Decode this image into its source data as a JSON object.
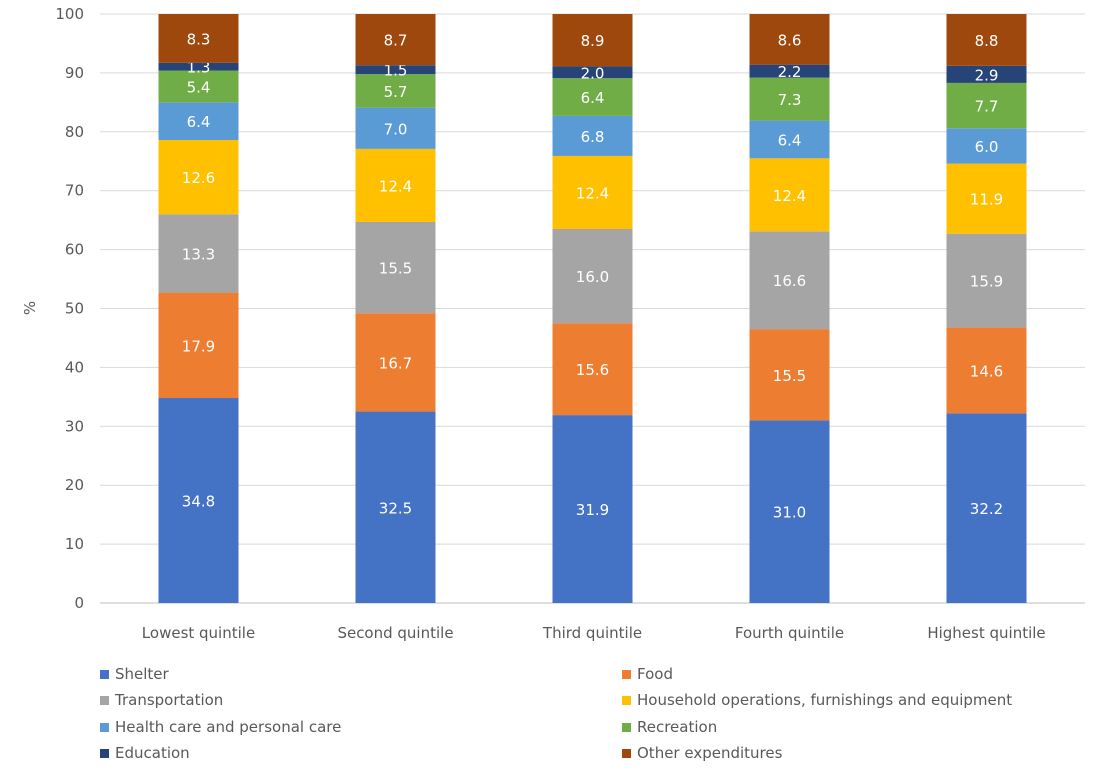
{
  "chart_data": {
    "type": "bar",
    "stacked": true,
    "title": "",
    "xlabel": "",
    "ylabel": "%",
    "ylim": [
      0,
      100
    ],
    "yticks": [
      0,
      10,
      20,
      30,
      40,
      50,
      60,
      70,
      80,
      90,
      100
    ],
    "grid": true,
    "legend_placement": "bottom",
    "categories": [
      "Lowest quintile",
      "Second quintile",
      "Third quintile",
      "Fourth quintile",
      "Highest quintile"
    ],
    "series": [
      {
        "name": "Shelter",
        "color": "#4472C4",
        "values": [
          34.8,
          32.5,
          31.9,
          31.0,
          32.2
        ]
      },
      {
        "name": "Food",
        "color": "#ED7D31",
        "values": [
          17.9,
          16.7,
          15.6,
          15.5,
          14.6
        ]
      },
      {
        "name": "Transportation",
        "color": "#A5A5A5",
        "values": [
          13.3,
          15.5,
          16.0,
          16.6,
          15.9
        ]
      },
      {
        "name": "Household operations, furnishings and equipment",
        "color": "#FFC000",
        "values": [
          12.6,
          12.4,
          12.4,
          12.4,
          11.9
        ]
      },
      {
        "name": "Health care and personal care",
        "color": "#5B9BD5",
        "values": [
          6.4,
          7.0,
          6.8,
          6.4,
          6.0
        ]
      },
      {
        "name": "Recreation",
        "color": "#70AD47",
        "values": [
          5.4,
          5.7,
          6.4,
          7.3,
          7.7
        ]
      },
      {
        "name": "Education",
        "color": "#264478",
        "values": [
          1.3,
          1.5,
          2.0,
          2.2,
          2.9
        ]
      },
      {
        "name": "Other expenditures",
        "color": "#9E480E",
        "values": [
          8.3,
          8.7,
          8.9,
          8.6,
          8.8
        ]
      }
    ]
  }
}
